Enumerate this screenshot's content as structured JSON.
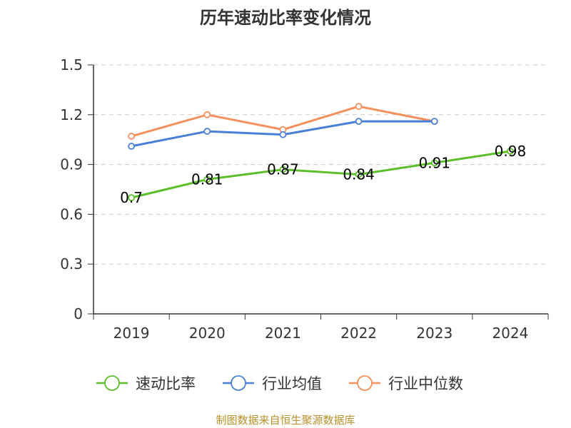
{
  "chart_data": {
    "type": "line",
    "title": "历年速动比率变化情况",
    "categories": [
      "2019",
      "2020",
      "2021",
      "2022",
      "2023",
      "2024"
    ],
    "ylim": [
      0,
      1.5
    ],
    "yticks": [
      "0",
      "0.3",
      "0.6",
      "0.9",
      "1.2",
      "1.5"
    ],
    "grid": true,
    "legend_position": "bottom",
    "series": [
      {
        "name": "速动比率",
        "color": "#5cbf2a",
        "values": [
          0.7,
          0.81,
          0.87,
          0.84,
          0.91,
          0.98
        ],
        "labels": [
          "0.7",
          "0.81",
          "0.87",
          "0.84",
          "0.91",
          "0.98"
        ]
      },
      {
        "name": "行业均值",
        "color": "#4a7fd8",
        "values": [
          1.01,
          1.1,
          1.08,
          1.16,
          1.16,
          null
        ]
      },
      {
        "name": "行业中位数",
        "color": "#f4905c",
        "values": [
          1.07,
          1.2,
          1.11,
          1.25,
          1.16,
          null
        ]
      }
    ]
  },
  "source": "制图数据来自恒生聚源数据库"
}
